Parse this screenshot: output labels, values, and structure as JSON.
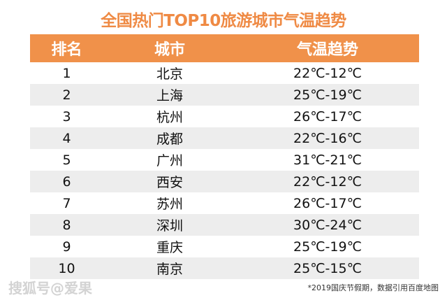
{
  "title": "全国热门TOP10旅游城市气温趋势",
  "headers": [
    "排名",
    "城市",
    "气温趋势"
  ],
  "rows": [
    {
      "rank": "1",
      "city": "北京",
      "temp": "22℃-12℃"
    },
    {
      "rank": "2",
      "city": "上海",
      "temp": "25℃-19℃"
    },
    {
      "rank": "3",
      "city": "杭州",
      "temp": "26℃-17℃"
    },
    {
      "rank": "4",
      "city": "成都",
      "temp": "22℃-16℃"
    },
    {
      "rank": "5",
      "city": "广州",
      "temp": "31℃-21℃"
    },
    {
      "rank": "6",
      "city": "西安",
      "temp": "22℃-12℃"
    },
    {
      "rank": "7",
      "city": "苏州",
      "temp": "26℃-17℃"
    },
    {
      "rank": "8",
      "city": "深圳",
      "temp": "30℃-24℃"
    },
    {
      "rank": "9",
      "city": "重庆",
      "temp": "25℃-19℃"
    },
    {
      "rank": "10",
      "city": "南京",
      "temp": "25℃-15℃"
    }
  ],
  "footnote": "*2019国庆节假期，数据引用百度地图",
  "watermark": "搜狐号@爱果",
  "colors": {
    "accent": "#f0914a",
    "stripe": "#ededed"
  }
}
